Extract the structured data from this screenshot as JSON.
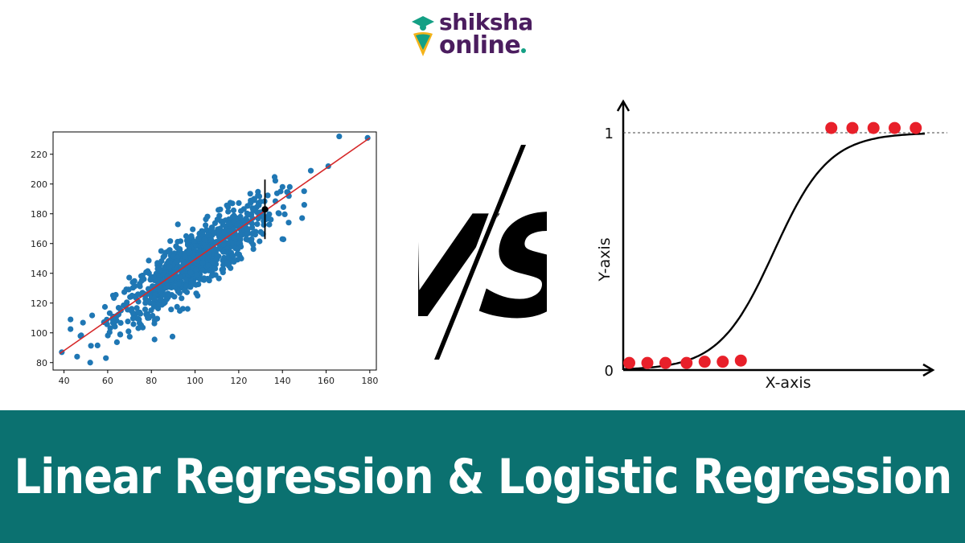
{
  "brand": {
    "line1": "shiksha",
    "line2": "online",
    "colors": {
      "text": "#4b1d5f",
      "accent": "#14a085",
      "gold": "#f4b31a"
    },
    "icon": "graduate-cap-pin-icon"
  },
  "vs": {
    "label": "VS",
    "color": "#000000"
  },
  "title": "Linear Regression & Logistic Regression",
  "colors": {
    "banner_bg": "#0b7170",
    "banner_text": "#ffffff",
    "scatter": "#1f77b4",
    "fit_line": "#d62728",
    "logistic_points": "#e8202a"
  },
  "chart_data": [
    {
      "type": "scatter",
      "title": "",
      "xlabel": "",
      "ylabel": "",
      "xlim": [
        35,
        183
      ],
      "ylim": [
        75,
        235
      ],
      "xticks": [
        40,
        60,
        80,
        100,
        120,
        140,
        160,
        180
      ],
      "yticks": [
        80,
        100,
        120,
        140,
        160,
        180,
        200,
        220
      ],
      "series": [
        {
          "cloud": {
            "count": 900,
            "x_mean": 100,
            "x_sd": 18,
            "slope": 1.0,
            "intercept": 48,
            "residual_sd": 10
          },
          "outliers": [
            {
              "x": 166,
              "y": 232
            },
            {
              "x": 179,
              "y": 231
            },
            {
              "x": 161,
              "y": 212
            },
            {
              "x": 39,
              "y": 87
            },
            {
              "x": 52,
              "y": 80
            },
            {
              "x": 43,
              "y": 109
            },
            {
              "x": 46,
              "y": 84
            },
            {
              "x": 150,
              "y": 186
            },
            {
              "x": 140,
              "y": 163
            }
          ]
        }
      ],
      "fit_line": {
        "x": [
          38,
          180
        ],
        "y": [
          86,
          231
        ]
      },
      "highlight": {
        "point": {
          "x": 132,
          "y": 183
        },
        "error_bar": [
          163,
          203
        ]
      },
      "grid": false
    },
    {
      "type": "line",
      "title": "",
      "xlabel": "X-axis",
      "ylabel": "Y-axis",
      "xlim": [
        0,
        1
      ],
      "ylim": [
        0,
        1
      ],
      "yticks": [
        {
          "value": 0,
          "label": "0"
        },
        {
          "value": 1,
          "label": "1"
        }
      ],
      "reference_line": 1,
      "curve": {
        "function": "sigmoid",
        "center": 0.5,
        "steepness": 11
      },
      "points_low": [
        {
          "x": 0.02,
          "y": 0.03
        },
        {
          "x": 0.08,
          "y": 0.03
        },
        {
          "x": 0.14,
          "y": 0.03
        },
        {
          "x": 0.21,
          "y": 0.03
        },
        {
          "x": 0.27,
          "y": 0.035
        },
        {
          "x": 0.33,
          "y": 0.035
        },
        {
          "x": 0.39,
          "y": 0.04
        }
      ],
      "points_high": [
        {
          "x": 0.69,
          "y": 1.02
        },
        {
          "x": 0.76,
          "y": 1.02
        },
        {
          "x": 0.83,
          "y": 1.02
        },
        {
          "x": 0.9,
          "y": 1.02
        },
        {
          "x": 0.97,
          "y": 1.02
        }
      ],
      "grid": false
    }
  ]
}
